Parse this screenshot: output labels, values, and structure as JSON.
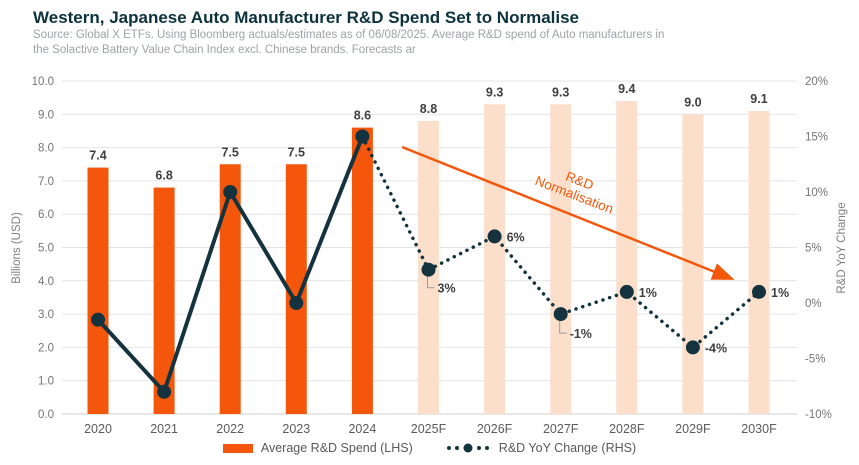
{
  "header": {
    "title": "Western, Japanese Auto Manufacturer R&D Spend Set to Normalise",
    "source_line1": "Source: Global X ETFs. Using Bloomberg actuals/estimates as of 06/08/2025. Average R&D spend of Auto manufacturers in",
    "source_line2": "the Solactive Battery Value Chain Index excl. Chinese brands. Forecasts ar"
  },
  "chart_data": {
    "type": "bar+line combo",
    "categories": [
      "2020",
      "2021",
      "2022",
      "2023",
      "2024",
      "2025F",
      "2026F",
      "2027F",
      "2028F",
      "2029F",
      "2030F"
    ],
    "series": [
      {
        "name": "Average R&D Spend (LHS)",
        "type": "bar",
        "axis": "left",
        "unit": "USD billions",
        "values": [
          7.4,
          6.8,
          7.5,
          7.5,
          8.6,
          8.8,
          9.3,
          9.3,
          9.4,
          9.0,
          9.1
        ],
        "labels": [
          "7.4",
          "6.8",
          "7.5",
          "7.5",
          "8.6",
          "8.8",
          "9.3",
          "9.3",
          "9.4",
          "9.0",
          "9.1"
        ],
        "forecast_from_index": 5,
        "actual_color": "#F4570B",
        "forecast_color": "#FBDFCB"
      },
      {
        "name": "R&D YoY Change (RHS)",
        "type": "line",
        "axis": "right",
        "unit": "percent",
        "values": [
          -1.5,
          -8,
          10,
          0,
          15,
          3,
          6,
          -1,
          1,
          -4,
          1
        ],
        "labels": [
          "",
          "",
          "",
          "",
          "",
          "3%",
          "6%",
          "-1%",
          "1%",
          "-4%",
          "1%"
        ],
        "solid_until_index": 4,
        "color": "#14333E"
      }
    ],
    "left_axis": {
      "title": "Billions (USD)",
      "min": 0,
      "max": 10,
      "step": 1,
      "ticks": [
        "0.0",
        "1.0",
        "2.0",
        "3.0",
        "4.0",
        "5.0",
        "6.0",
        "7.0",
        "8.0",
        "9.0",
        "10.0"
      ]
    },
    "right_axis": {
      "title": "R&D YoY Change",
      "min": -10,
      "max": 20,
      "step": 5,
      "ticks": [
        "-10%",
        "-5%",
        "0%",
        "5%",
        "10%",
        "15%",
        "20%"
      ]
    },
    "annotation": {
      "line1": "R&D",
      "line2": "Normalisation",
      "color": "#F4570B"
    },
    "legend": [
      {
        "label": "Average R&D Spend (LHS)"
      },
      {
        "label": "R&D YoY Change (RHS)"
      }
    ],
    "grid": "horizontal",
    "legend_position": "bottom-center"
  }
}
